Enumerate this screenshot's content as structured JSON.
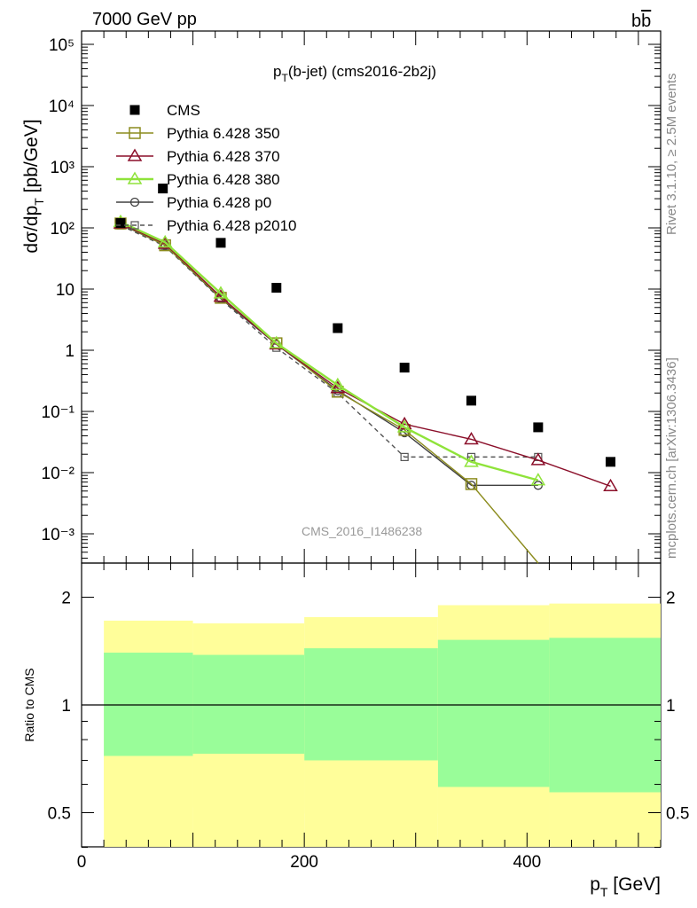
{
  "header": {
    "left": "7000 GeV pp",
    "right": "bb̄",
    "side_top": "Rivet 3.1.10, ≥ 2.5M events",
    "side_bottom": "mcplots.cern.ch [arXiv:1306.3436]",
    "plot_title": "p_T(b-jet) (cms2016-2b2j)",
    "watermark": "CMS_2016_I1486238"
  },
  "axes": {
    "upper_ylabel": "dσ/dp_T [pb/GeV]",
    "lower_ylabel": "Ratio to CMS",
    "xlabel": "p_T [GeV]",
    "upper_y_ticks": [
      "10⁻³",
      "10⁻²",
      "10⁻¹",
      "1",
      "10",
      "10²",
      "10³",
      "10⁴",
      "10⁵"
    ],
    "ratio_ticks": [
      "0.5",
      "1",
      "2"
    ],
    "x_ticks": [
      "0",
      "200",
      "400"
    ]
  },
  "colors": {
    "cms": "#000000",
    "p350": "#8c8c1e",
    "p370": "#8b0f2a",
    "p380": "#8fe33a",
    "p0": "#404040",
    "p2010": "#555555",
    "band_outer": "#fffe9a",
    "band_inner": "#99fd99"
  },
  "chart_data": {
    "type": "scatter",
    "log_y": true,
    "xlim": [
      0,
      520
    ],
    "ylim": [
      0.00035,
      150000
    ],
    "ratio_ylim": [
      0.35,
      2.35
    ],
    "bin_edges": [
      20,
      100,
      200,
      320,
      420,
      520
    ],
    "series": [
      {
        "name": "CMS",
        "key": "cms",
        "style": "filled-square",
        "x": [
          35,
          73,
          125,
          175,
          230,
          290,
          350,
          410,
          475
        ],
        "y": [
          120,
          440,
          57,
          10.5,
          2.3,
          0.52,
          0.15,
          0.055,
          0.015
        ]
      },
      {
        "name": "Pythia 6.428 350",
        "key": "p350",
        "style": "open-square",
        "x": [
          35,
          75,
          125,
          175,
          230,
          290,
          350,
          410
        ],
        "y": [
          118,
          52,
          7.2,
          1.3,
          0.21,
          0.05,
          0.0065,
          0.0003
        ]
      },
      {
        "name": "Pythia 6.428 370",
        "key": "p370",
        "style": "open-triangle",
        "x": [
          35,
          75,
          125,
          175,
          230,
          290,
          350,
          410,
          475
        ],
        "y": [
          118,
          55,
          7.5,
          1.25,
          0.24,
          0.062,
          0.035,
          0.016,
          0.006
        ]
      },
      {
        "name": "Pythia 6.428 380",
        "key": "p380",
        "style": "open-triangle",
        "x": [
          35,
          75,
          125,
          175,
          230,
          290,
          350,
          410
        ],
        "y": [
          125,
          58,
          8.5,
          1.3,
          0.27,
          0.055,
          0.015,
          0.0075
        ]
      },
      {
        "name": "Pythia 6.428 p0",
        "key": "p0",
        "style": "open-circle",
        "x": [
          35,
          75,
          125,
          175,
          230,
          290,
          350,
          410
        ],
        "y": [
          115,
          52,
          7.0,
          1.25,
          0.22,
          0.045,
          0.0062,
          0.0062
        ]
      },
      {
        "name": "Pythia 6.428 p2010",
        "key": "p2010",
        "style": "small-square-dashed",
        "x": [
          35,
          75,
          125,
          175,
          230,
          290,
          350,
          410
        ],
        "y": [
          110,
          50,
          6.8,
          1.1,
          0.2,
          0.018,
          0.018,
          0.018
        ]
      }
    ],
    "ratio_bands": {
      "outer_low": [
        0.72,
        0.73,
        0.7,
        0.59,
        0.57,
        0.56
      ],
      "outer_high": [
        1.72,
        1.69,
        1.76,
        1.9,
        1.92,
        1.94
      ],
      "inner_low": [
        0.72,
        0.73,
        0.7,
        0.59,
        0.57,
        0.56
      ],
      "inner_high": [
        1.4,
        1.38,
        1.44,
        1.52,
        1.54,
        1.55
      ]
    }
  }
}
